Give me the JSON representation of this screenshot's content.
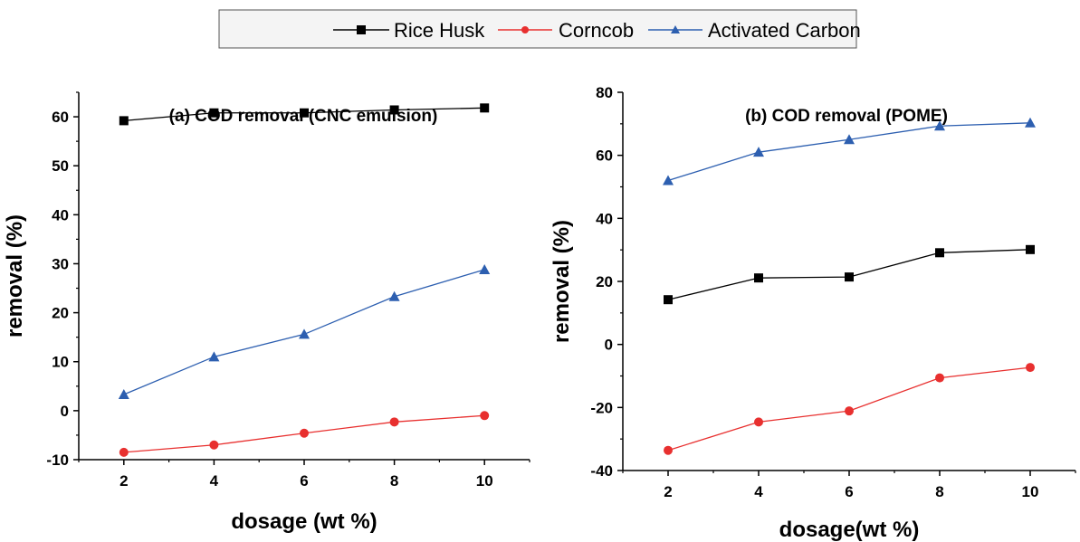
{
  "legend": {
    "entries": [
      {
        "label": "Rice Husk",
        "color": "#000000",
        "marker": "square"
      },
      {
        "label": "Corncob",
        "color": "#e8302f",
        "marker": "circle"
      },
      {
        "label": "Activated Carbon",
        "color": "#2d5fb0",
        "marker": "triangle"
      }
    ]
  },
  "chart_data": [
    {
      "type": "line",
      "title": "(a)  COD removal (CNC emulsion)",
      "xlabel": "dosage (wt %)",
      "ylabel": "removal (%)",
      "x": [
        2,
        4,
        6,
        8,
        10
      ],
      "xlim": [
        1,
        11
      ],
      "ylim": [
        -10,
        65
      ],
      "xticks": [
        2,
        4,
        6,
        8,
        10
      ],
      "yticks": [
        -10,
        0,
        10,
        20,
        30,
        40,
        50,
        60
      ],
      "series": [
        {
          "name": "Rice Husk",
          "color": "#000000",
          "marker": "square",
          "values": [
            59.2,
            60.8,
            60.8,
            61.4,
            61.8
          ]
        },
        {
          "name": "Corncob",
          "color": "#e8302f",
          "marker": "circle",
          "values": [
            -8.5,
            -7.0,
            -4.6,
            -2.3,
            -1.0
          ]
        },
        {
          "name": "Activated Carbon",
          "color": "#2d5fb0",
          "marker": "triangle",
          "values": [
            3.3,
            11.0,
            15.6,
            23.3,
            28.8
          ]
        }
      ]
    },
    {
      "type": "line",
      "title": "(b)  COD removal (POME)",
      "xlabel": "dosage(wt %)",
      "ylabel": "removal (%)",
      "x": [
        2,
        4,
        6,
        8,
        10
      ],
      "xlim": [
        1,
        11
      ],
      "ylim": [
        -40,
        80
      ],
      "xticks": [
        2,
        4,
        6,
        8,
        10
      ],
      "yticks": [
        -40,
        -20,
        0,
        20,
        40,
        60,
        80
      ],
      "series": [
        {
          "name": "Activated Carbon",
          "color": "#2d5fb0",
          "marker": "triangle",
          "values": [
            52,
            61,
            65,
            69.3,
            70.3
          ]
        },
        {
          "name": "Rice Husk",
          "color": "#000000",
          "marker": "square",
          "values": [
            14.2,
            21.1,
            21.4,
            29.1,
            30.1
          ]
        },
        {
          "name": "Corncob",
          "color": "#e8302f",
          "marker": "circle",
          "values": [
            -33.6,
            -24.6,
            -21.1,
            -10.6,
            -7.3
          ]
        }
      ]
    }
  ]
}
